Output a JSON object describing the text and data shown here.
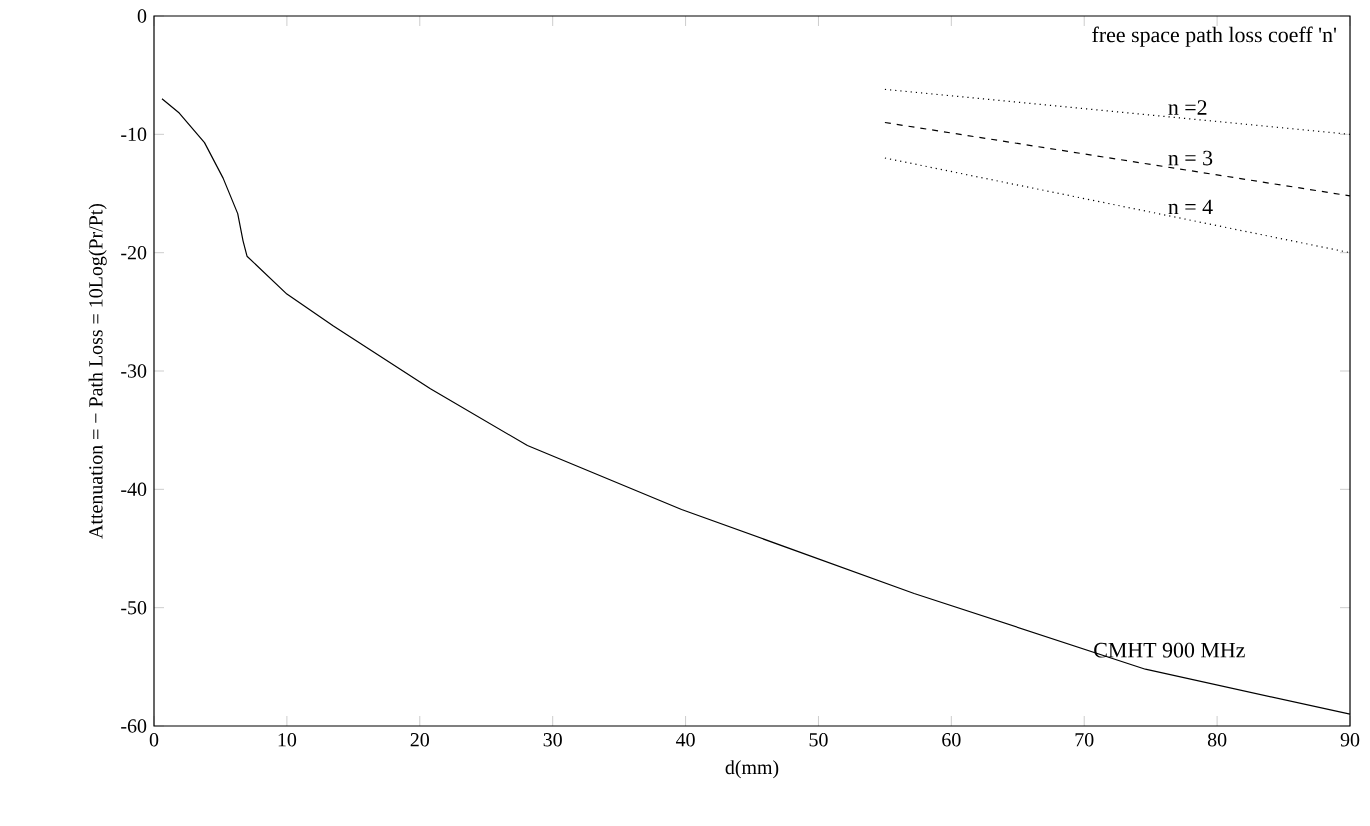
{
  "chart_data": {
    "type": "line",
    "xlabel": "d(mm)",
    "ylabel": "Attenuation = − Path Loss = 10Log(Pr/Pt)",
    "annotations": [
      "free space path loss coeff 'n'"
    ],
    "series": [
      {
        "name": "CMHT 900 MHz",
        "color": "#000000",
        "line_style": "solid",
        "x": [
          0.6,
          1.9,
          3.8,
          5.2,
          6.3,
          6.7,
          7.0,
          10,
          13.5,
          20.8,
          28.1,
          39.7,
          57.2,
          74.6,
          90
        ],
        "values": [
          -7.0,
          -8.2,
          -10.7,
          -13.7,
          -16.7,
          -19.0,
          -20.3,
          -23.5,
          -26.2,
          -31.5,
          -36.3,
          -41.7,
          -48.8,
          -55.2,
          -59.0
        ]
      },
      {
        "name": "n =2",
        "color": "#000000",
        "line_style": "dotted",
        "x": [
          55,
          90
        ],
        "values": [
          -6.2,
          -10.0
        ]
      },
      {
        "name": "n = 3",
        "color": "#000000",
        "line_style": "dashed",
        "x": [
          55,
          90
        ],
        "values": [
          -9.0,
          -15.2
        ]
      },
      {
        "name": "n = 4",
        "color": "#000000",
        "line_style": "dotted",
        "x": [
          55,
          90
        ],
        "values": [
          -12.0,
          -20.0
        ]
      }
    ],
    "xlim": [
      0,
      90
    ],
    "ylim": [
      -60,
      0
    ],
    "xticks": [
      0,
      10,
      20,
      30,
      40,
      50,
      60,
      70,
      80,
      90
    ],
    "yticks": [
      -60,
      -50,
      -40,
      -30,
      -20,
      -10,
      0
    ]
  }
}
